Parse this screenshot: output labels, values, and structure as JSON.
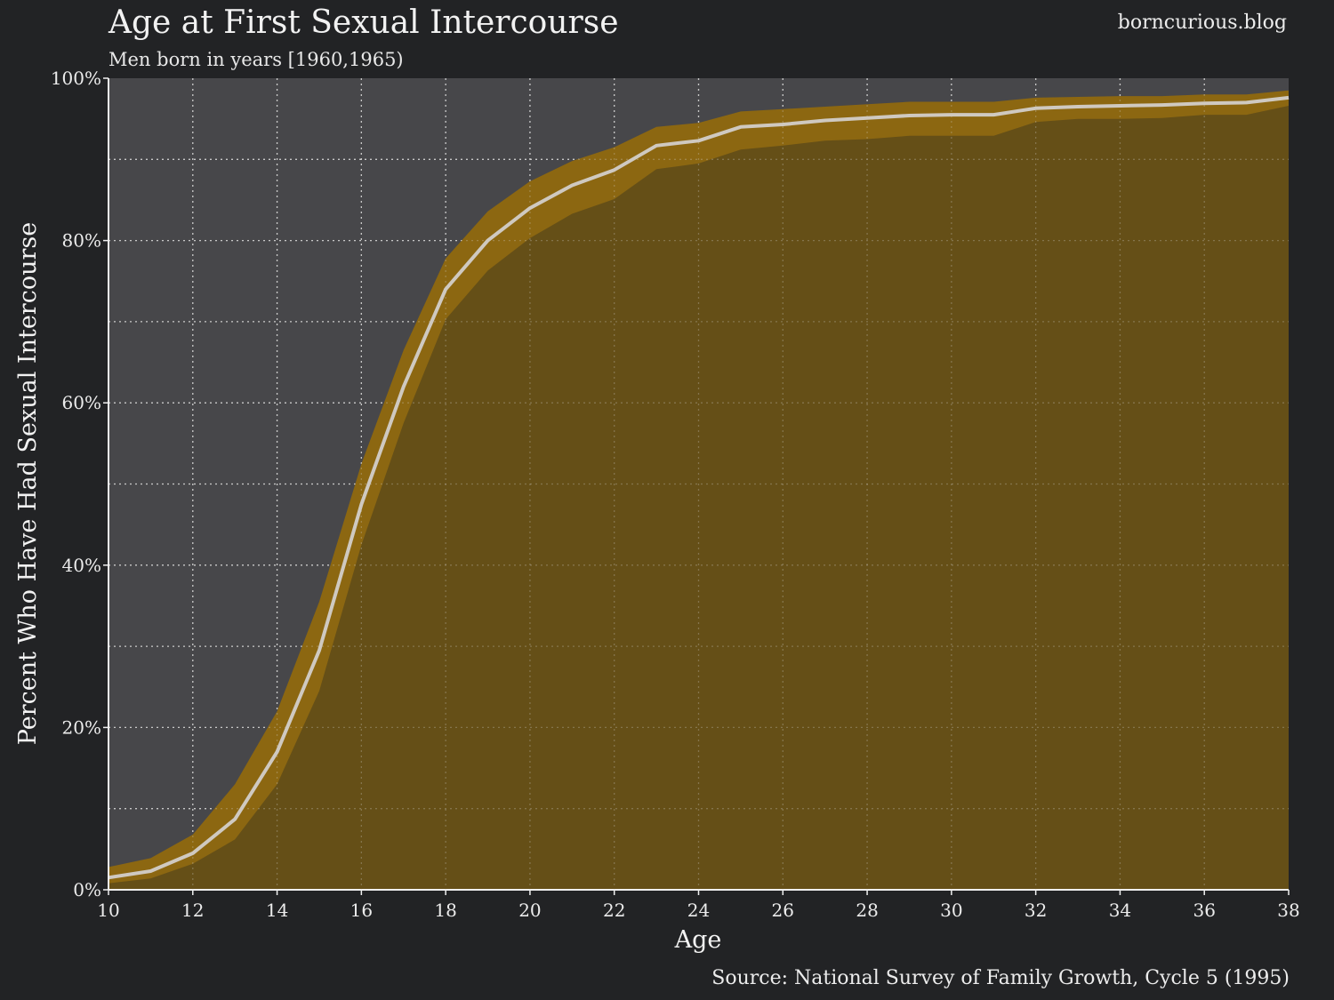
{
  "chart_data": {
    "type": "area",
    "title": "Age at First Sexual Intercourse",
    "subtitle": "Men born in years [1960,1965)",
    "credit": "borncurious.blog",
    "source": "Source: National Survey of Family Growth, Cycle 5 (1995)",
    "xlabel": "Age",
    "ylabel": "Percent Who Have Had Sexual Intercourse",
    "xlim": [
      10,
      38
    ],
    "ylim": [
      0,
      100
    ],
    "xticks": [
      10,
      12,
      14,
      16,
      18,
      20,
      22,
      24,
      26,
      28,
      30,
      32,
      34,
      36,
      38
    ],
    "yticks": [
      0,
      20,
      40,
      60,
      80,
      100
    ],
    "ytick_labels": [
      "0%",
      "20%",
      "40%",
      "60%",
      "80%",
      "100%"
    ],
    "grid": true,
    "x": [
      10,
      11,
      12,
      13,
      14,
      15,
      16,
      17,
      18,
      19,
      20,
      21,
      22,
      23,
      24,
      25,
      26,
      27,
      28,
      29,
      30,
      31,
      32,
      33,
      34,
      35,
      36,
      37,
      38
    ],
    "series": [
      {
        "values": [
          1.5,
          2.3,
          4.5,
          8.7,
          17.0,
          29.5,
          47.5,
          62.0,
          74.0,
          80.0,
          84.0,
          86.8,
          88.7,
          91.7,
          92.3,
          94.0,
          94.3,
          94.8,
          95.1,
          95.4,
          95.5,
          95.5,
          96.3,
          96.5,
          96.6,
          96.7,
          96.9,
          97.0,
          97.6
        ],
        "lower": [
          0.8,
          1.4,
          3.2,
          6.2,
          13.0,
          24.5,
          42.5,
          57.5,
          70.3,
          76.3,
          80.3,
          83.3,
          85.1,
          88.8,
          89.5,
          91.2,
          91.7,
          92.3,
          92.5,
          92.9,
          92.9,
          92.9,
          94.6,
          95.0,
          95.0,
          95.1,
          95.5,
          95.5,
          96.6
        ],
        "upper": [
          2.8,
          3.9,
          6.8,
          13.0,
          22.0,
          35.5,
          52.5,
          66.5,
          77.8,
          83.6,
          87.3,
          89.8,
          91.5,
          94.0,
          94.5,
          95.9,
          96.2,
          96.5,
          96.8,
          97.1,
          97.1,
          97.1,
          97.6,
          97.7,
          97.8,
          97.8,
          98.0,
          98.0,
          98.5
        ]
      }
    ],
    "colors": {
      "background": "#222325",
      "plot_background": "#47474a",
      "area_fill": "#654f17",
      "band_fill": "#8c6711",
      "line": "#cfc9c0",
      "grid": "#d8d8d8"
    }
  }
}
